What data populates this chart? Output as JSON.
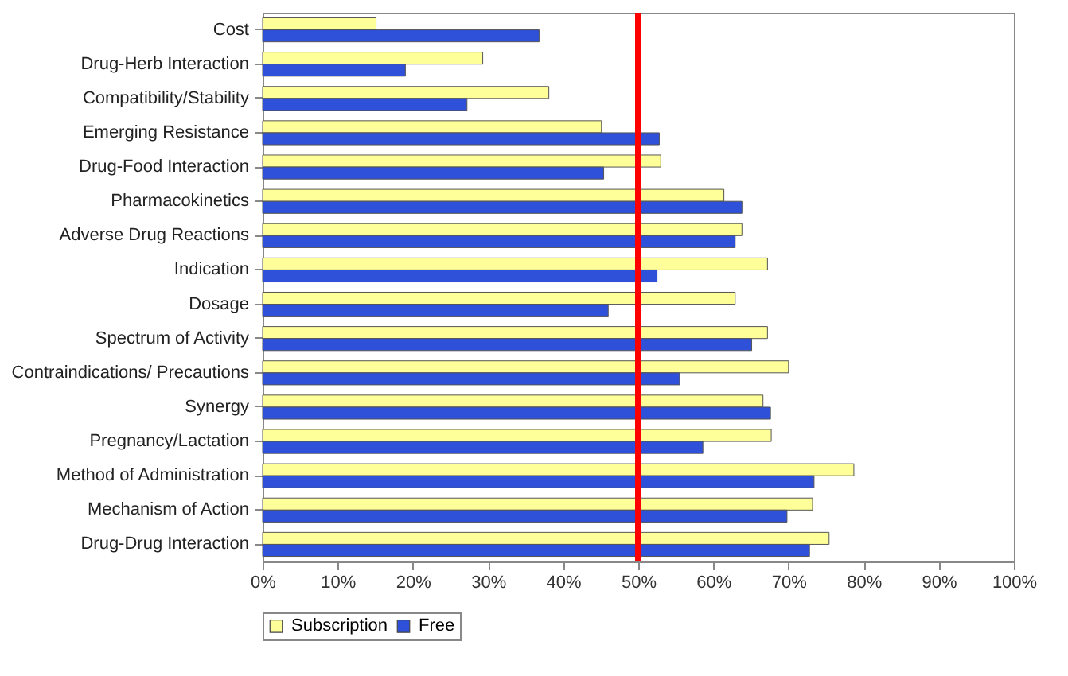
{
  "chart_data": {
    "type": "bar",
    "orientation": "horizontal",
    "categories": [
      "Cost",
      "Drug-Herb Interaction",
      "Compatibility/Stability",
      "Emerging Resistance",
      "Drug-Food Interaction",
      "Pharmacokinetics",
      "Adverse Drug Reactions",
      "Indication",
      "Dosage",
      "Spectrum of Activity",
      "Contraindications/ Precautions",
      "Synergy",
      "Pregnancy/Lactation",
      "Method of Administration",
      "Mechanism of Action",
      "Drug-Drug Interaction"
    ],
    "series": [
      {
        "name": "Subscription",
        "color": "#ffff99",
        "values": [
          15.1,
          29.3,
          38.1,
          45.1,
          53.0,
          61.4,
          63.8,
          67.2,
          62.9,
          67.2,
          70.0,
          66.6,
          67.7,
          78.7,
          73.2,
          75.4
        ]
      },
      {
        "name": "Free",
        "color": "#2f50d8",
        "values": [
          36.8,
          19.0,
          27.2,
          52.8,
          45.4,
          63.8,
          62.9,
          52.5,
          46.0,
          65.1,
          55.5,
          67.6,
          58.6,
          73.4,
          69.8,
          72.8
        ]
      }
    ],
    "xlim": [
      0,
      100
    ],
    "xticks": [
      {
        "value": 0,
        "label": "0%"
      },
      {
        "value": 10,
        "label": "10%"
      },
      {
        "value": 20,
        "label": "20%"
      },
      {
        "value": 30,
        "label": "30%"
      },
      {
        "value": 40,
        "label": "40%"
      },
      {
        "value": 50,
        "label": "50%"
      },
      {
        "value": 60,
        "label": "60%"
      },
      {
        "value": 70,
        "label": "70%"
      },
      {
        "value": 80,
        "label": "80%"
      },
      {
        "value": 90,
        "label": "90%"
      },
      {
        "value": 100,
        "label": "100%"
      }
    ],
    "ref_lines": [
      {
        "axis": "x",
        "value": 50,
        "color": "#ff0000"
      }
    ],
    "grid": false,
    "legend": "bottom"
  }
}
